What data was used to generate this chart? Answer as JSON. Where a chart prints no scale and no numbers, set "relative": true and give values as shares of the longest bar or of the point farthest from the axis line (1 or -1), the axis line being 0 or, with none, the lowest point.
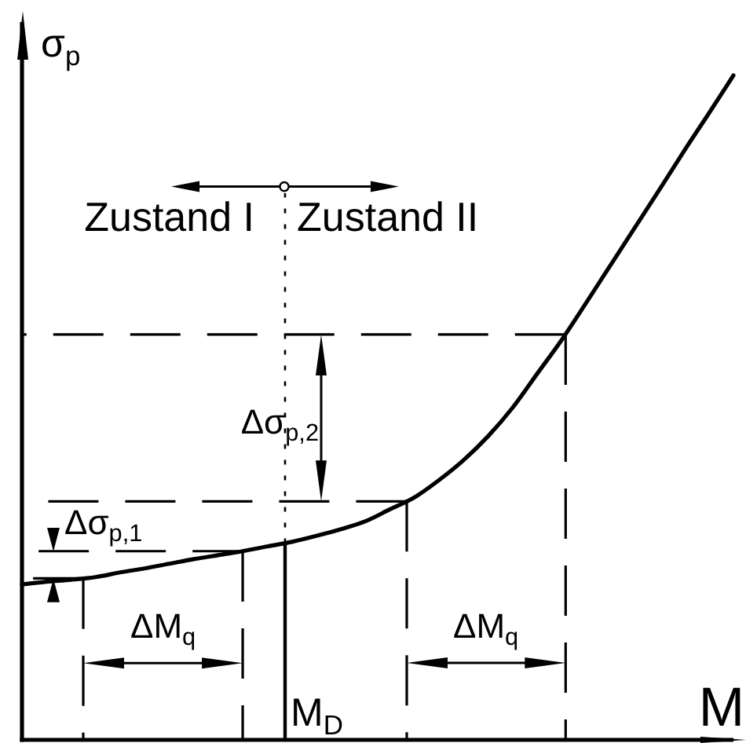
{
  "chart_data": {
    "type": "line",
    "relative": true,
    "xlabel": "M",
    "ylabel": "σ$_{p}$",
    "categories": [
      null,
      null,
      null,
      null,
      null,
      null,
      null,
      null,
      null,
      null,
      null,
      null,
      null,
      null,
      null,
      null,
      null,
      null,
      null,
      null,
      null,
      null,
      null,
      null,
      null,
      null,
      null,
      null,
      null,
      null
    ],
    "values": [
      0.234,
      0.238,
      0.241,
      0.245,
      0.252,
      0.258,
      0.265,
      0.272,
      0.278,
      0.284,
      0.291,
      0.298,
      0.307,
      0.317,
      0.329,
      0.347,
      0.365,
      0.391,
      0.421,
      0.457,
      0.5,
      0.551,
      0.602,
      0.658,
      0.715,
      0.772,
      0.829,
      0.887,
      0.943,
      1
    ],
    "color": "#000000",
    "ref_lines": [
      {
        "axis": "y",
        "value": 0.61,
        "line_style": "dashed",
        "color": "#000000"
      },
      {
        "axis": "y",
        "value": 0.359,
        "line_style": "dashed",
        "color": "#000000"
      },
      {
        "axis": "y",
        "value": 0.284,
        "line_style": "dashed",
        "color": "#000000"
      },
      {
        "axis": "y",
        "value": 0.243,
        "line_style": "dashed",
        "color": "#000000"
      }
    ],
    "annotations": [
      "Zustand I",
      "Zustand II",
      "Δσ$_{p,2}$",
      "Δσ$_{p,1}$",
      "ΔM$_{q}$",
      "ΔM$_{q}$",
      "M$_{D}$"
    ]
  }
}
